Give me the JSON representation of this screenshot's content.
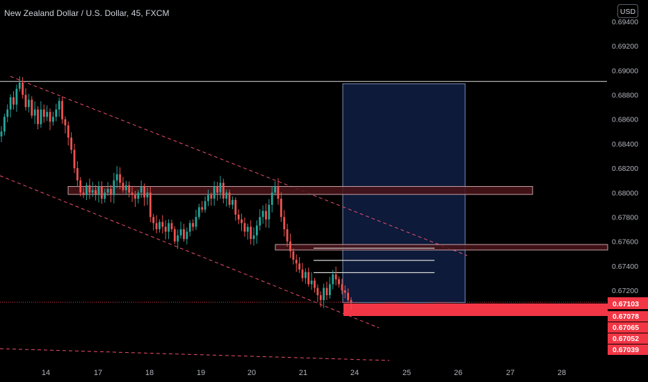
{
  "header": {
    "title": "New Zealand Dollar / U.S. Dollar, 45, FXCM",
    "currency_label": "USD"
  },
  "colors": {
    "background": "#000000",
    "up": "#26a69a",
    "down": "#ef5350",
    "channel": "#f0506e",
    "zone_fill": "#4a1419",
    "target_box": "#0d1a3a",
    "price_badge": "#f23645"
  },
  "chart_data": {
    "type": "candlestick",
    "x_tick_labels": [
      "14",
      "17",
      "18",
      "19",
      "20",
      "21",
      "24",
      "25",
      "26",
      "27",
      "28"
    ],
    "y_tick_labels": [
      "0.69400",
      "0.69200",
      "0.69000",
      "0.68800",
      "0.68600",
      "0.68400",
      "0.68200",
      "0.68000",
      "0.67800",
      "0.67600",
      "0.67400",
      "0.67200"
    ],
    "ylim": [
      0.6697,
      0.6953
    ],
    "close_path": [
      0.685,
      0.6862,
      0.6868,
      0.6878,
      0.6872,
      0.6885,
      0.689,
      0.688,
      0.687,
      0.6876,
      0.6863,
      0.6868,
      0.6856,
      0.6868,
      0.6862,
      0.6866,
      0.6858,
      0.6862,
      0.6868,
      0.6875,
      0.686,
      0.6855,
      0.6845,
      0.6835,
      0.682,
      0.681,
      0.68,
      0.6798,
      0.6806,
      0.68,
      0.6802,
      0.6798,
      0.6805,
      0.6795,
      0.68,
      0.6803,
      0.6798,
      0.681,
      0.6815,
      0.6808,
      0.6802,
      0.6806,
      0.68,
      0.6798,
      0.6795,
      0.68,
      0.6805,
      0.6796,
      0.68,
      0.678,
      0.6775,
      0.677,
      0.6776,
      0.6772,
      0.6768,
      0.6775,
      0.677,
      0.676,
      0.6765,
      0.677,
      0.6762,
      0.6768,
      0.6775,
      0.6772,
      0.678,
      0.6788,
      0.6786,
      0.6793,
      0.6798,
      0.6795,
      0.6805,
      0.68,
      0.6808,
      0.6795,
      0.68,
      0.679,
      0.6794,
      0.6782,
      0.6778,
      0.6775,
      0.6768,
      0.6772,
      0.6762,
      0.6765,
      0.6773,
      0.678,
      0.6785,
      0.6778,
      0.679,
      0.68,
      0.6805,
      0.6795,
      0.678,
      0.677,
      0.676,
      0.6752,
      0.6745,
      0.6742,
      0.6737,
      0.673,
      0.6735,
      0.6725,
      0.6728,
      0.6722,
      0.6716,
      0.6712,
      0.6722,
      0.6716,
      0.6725,
      0.6733,
      0.6729,
      0.6725,
      0.672,
      0.6718,
      0.6712,
      0.671
    ],
    "current_price_badge": "0.67103",
    "price_labels": [
      "0.67078",
      "0.67065",
      "0.67052",
      "0.67039"
    ],
    "horizontal_line": 0.6891,
    "resistance_zones": [
      {
        "low": 0.67985,
        "high": 0.6805
      },
      {
        "low": 0.6753,
        "high": 0.67575
      }
    ],
    "target_box": {
      "low": 0.671,
      "high": 0.6889
    },
    "target_levels": [
      0.67545,
      0.67445,
      0.67345
    ],
    "red_zone": {
      "low": 0.67065,
      "high": 0.67103
    },
    "grid": false
  }
}
